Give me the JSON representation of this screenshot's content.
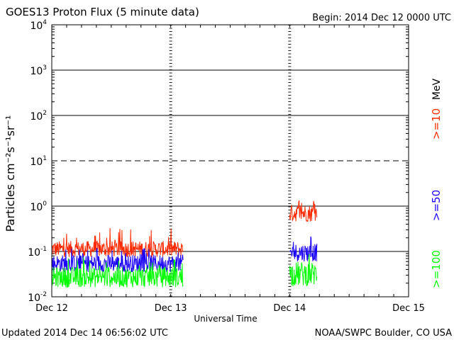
{
  "header": {
    "title": "GOES13 Proton Flux (5 minute data)",
    "begin": "Begin: 2014 Dec 12 0000 UTC"
  },
  "footer": {
    "updated": "Updated 2014 Dec 14 06:56:02 UTC",
    "credit": "NOAA/SWPC Boulder, CO USA"
  },
  "chart_data": {
    "type": "line",
    "title": "GOES13 Proton Flux (5 minute data)",
    "xlabel": "Universal Time",
    "ylabel": "Particles cm⁻²s⁻¹sr⁻¹",
    "yscale": "log",
    "ylim": [
      0.01,
      10000
    ],
    "xlim": [
      0,
      72
    ],
    "x_units": "hours since 2014 Dec 12 00:00 UTC",
    "x_ticks": [
      {
        "x": 0,
        "label": "Dec 12"
      },
      {
        "x": 24,
        "label": "Dec 13"
      },
      {
        "x": 48,
        "label": "Dec 14"
      },
      {
        "x": 72,
        "label": "Dec 15"
      }
    ],
    "y_ticks": [
      {
        "v": 0.01,
        "base": "10",
        "exp": "-2"
      },
      {
        "v": 0.1,
        "base": "10",
        "exp": "-1"
      },
      {
        "v": 1,
        "base": "10",
        "exp": "0"
      },
      {
        "v": 10,
        "base": "10",
        "exp": "1"
      },
      {
        "v": 100,
        "base": "10",
        "exp": "2"
      },
      {
        "v": 1000,
        "base": "10",
        "exp": "3"
      },
      {
        "v": 10000,
        "base": "10",
        "exp": "4"
      }
    ],
    "dashed_gridline": 10,
    "grid": true,
    "legend_unit": "MeV",
    "legend_placement": "right",
    "series": [
      {
        "name": ">=10",
        "color": "#ff2a00",
        "segments": [
          {
            "x_start": 0,
            "x_end": 26.5,
            "low": 0.075,
            "high": 0.17,
            "spike": 0.33
          },
          {
            "x_start": 48,
            "x_end": 53.5,
            "low": 0.45,
            "high": 1.1,
            "spike": 1.5
          }
        ]
      },
      {
        "name": ">=50",
        "color": "#1a00ff",
        "segments": [
          {
            "x_start": 0,
            "x_end": 26.5,
            "low": 0.035,
            "high": 0.085,
            "spike": 0.12
          },
          {
            "x_start": 48,
            "x_end": 53.5,
            "low": 0.06,
            "high": 0.15,
            "spike": 0.24
          }
        ]
      },
      {
        "name": ">=100",
        "color": "#00ff00",
        "segments": [
          {
            "x_start": 0,
            "x_end": 26.5,
            "low": 0.016,
            "high": 0.045,
            "spike": 0.075
          },
          {
            "x_start": 48,
            "x_end": 53.5,
            "low": 0.017,
            "high": 0.06,
            "spike": 0.1
          }
        ]
      }
    ]
  }
}
